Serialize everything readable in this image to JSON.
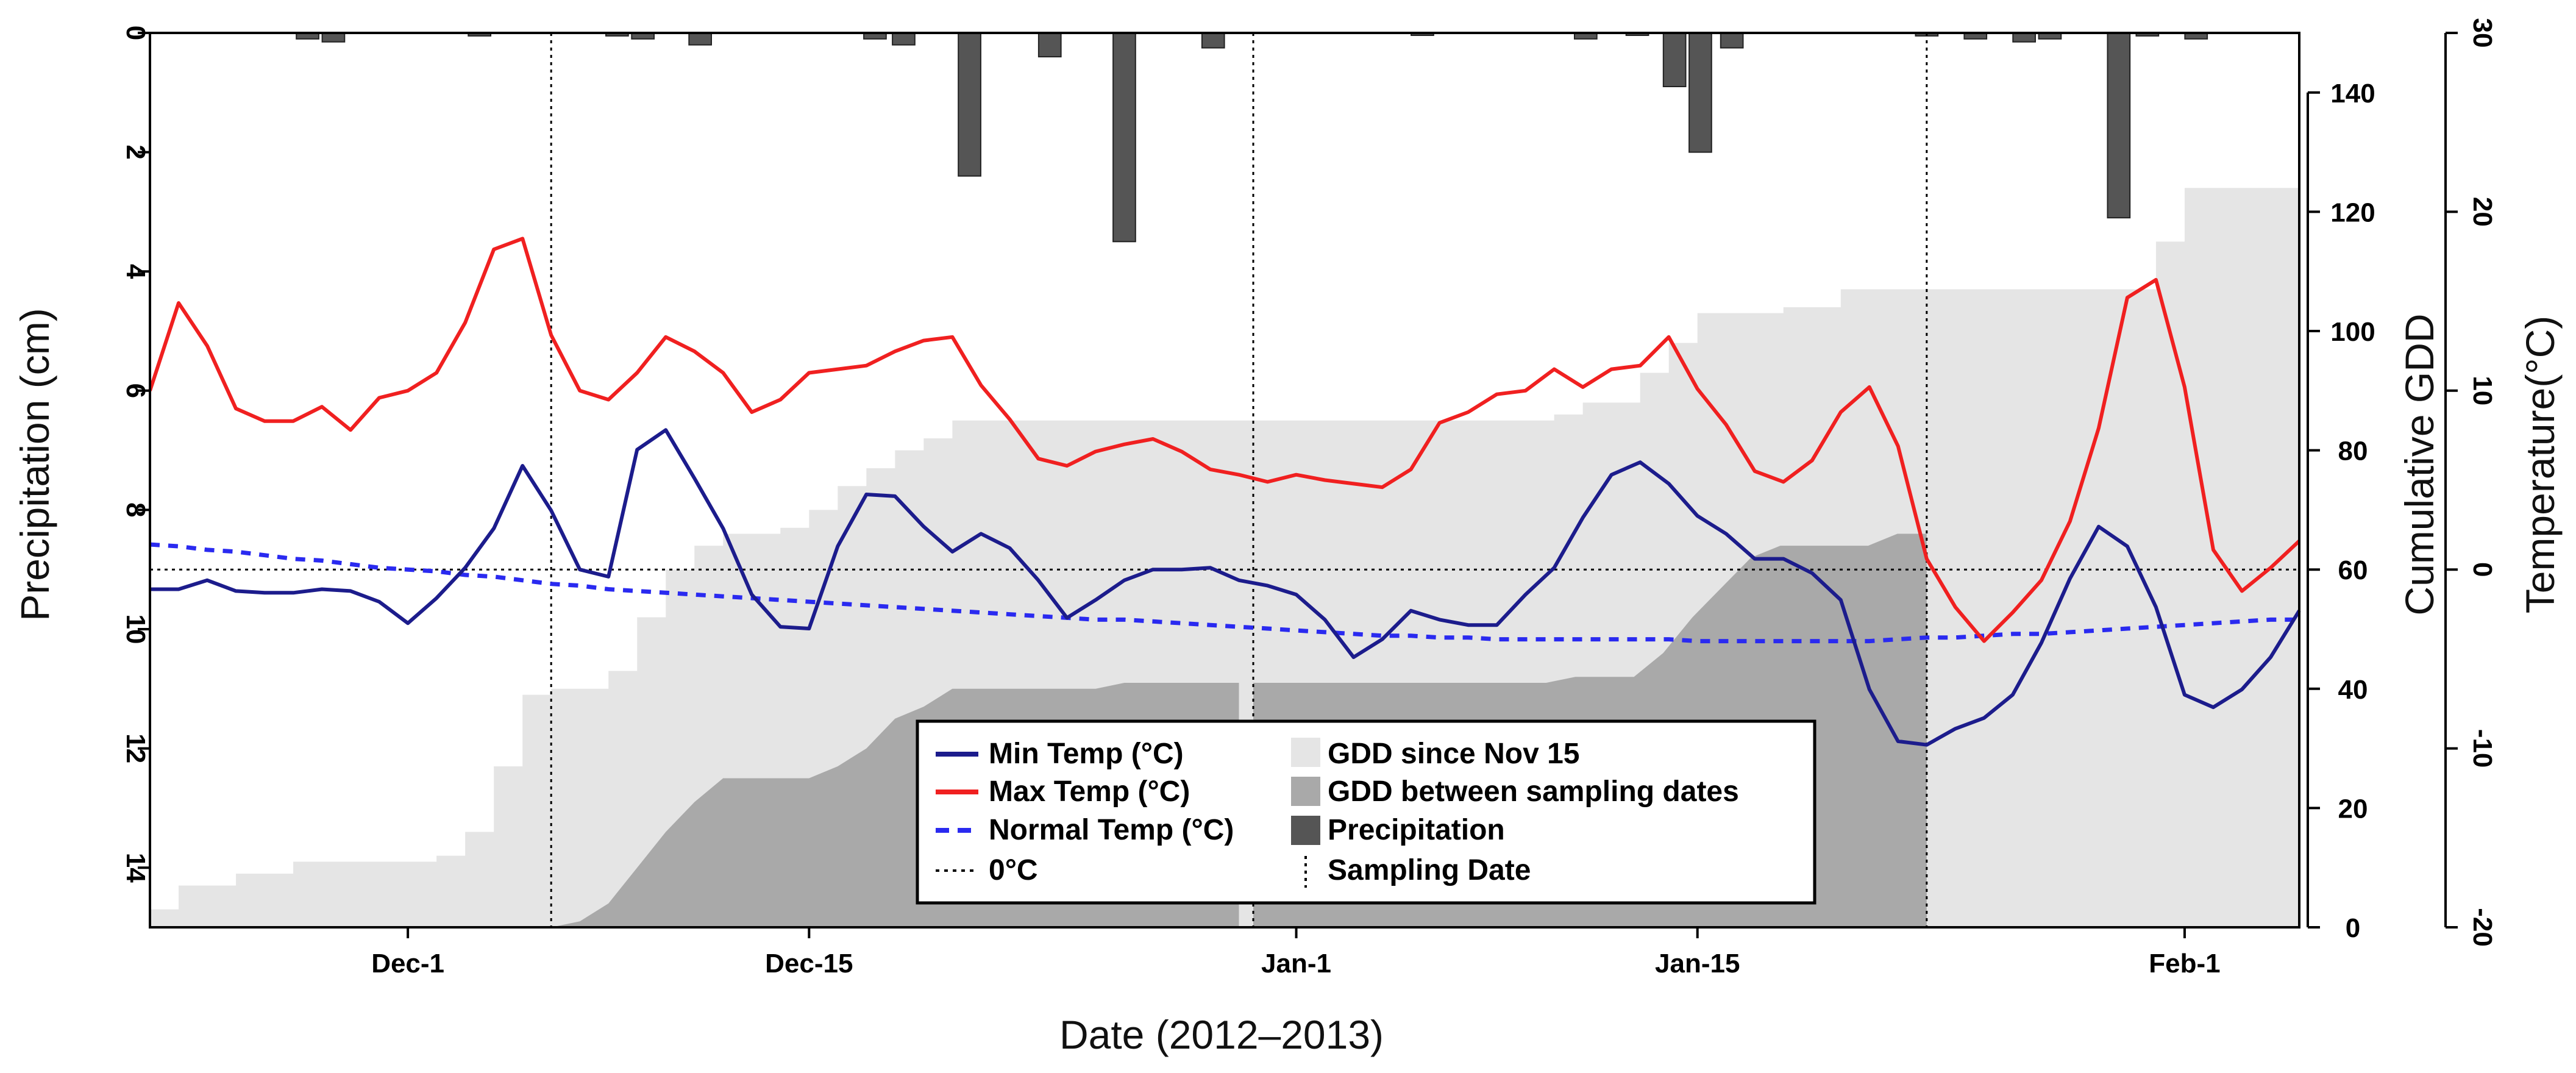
{
  "chart_data": {
    "type": "line",
    "title": "",
    "xlabel": "Date (2012–2013)",
    "ylabel_left": "Precipitation (cm)",
    "ylabel_gdd": "Cumulative GDD",
    "ylabel_right": "Temperature(°C)",
    "day_range": [
      0,
      75
    ],
    "x_ticks": [
      {
        "day": 9,
        "label": "Dec-1"
      },
      {
        "day": 23,
        "label": "Dec-15"
      },
      {
        "day": 40,
        "label": "Jan-1"
      },
      {
        "day": 54,
        "label": "Jan-15"
      },
      {
        "day": 71,
        "label": "Feb-1"
      }
    ],
    "precip_axis": {
      "ylim": [
        0,
        15
      ],
      "inverted": true,
      "ticks": [
        0,
        2,
        4,
        6,
        8,
        10,
        12,
        14
      ]
    },
    "gdd_axis": {
      "ylim": [
        0,
        150
      ],
      "ticks": [
        0,
        20,
        40,
        60,
        80,
        100,
        120,
        140
      ]
    },
    "temp_axis": {
      "ylim": [
        -20,
        30
      ],
      "ticks": [
        -20,
        -10,
        0,
        10,
        20,
        30
      ]
    },
    "zero_line": 0,
    "sampling_days": [
      14,
      38.5,
      62
    ],
    "min_temp": [
      -1.1,
      -1.1,
      -0.6,
      -1.2,
      -1.3,
      -1.3,
      -1.1,
      -1.2,
      -1.8,
      -3.0,
      -1.6,
      0.1,
      2.3,
      5.8,
      3.3,
      0.0,
      -0.4,
      6.7,
      7.8,
      5.1,
      2.3,
      -1.4,
      -3.2,
      -3.3,
      1.3,
      4.2,
      4.1,
      2.4,
      1.0,
      2.0,
      1.2,
      -0.6,
      -2.7,
      -1.7,
      -0.6,
      0.0,
      0.0,
      0.1,
      -0.6,
      -0.9,
      -1.4,
      -2.8,
      -4.9,
      -3.9,
      -2.3,
      -2.8,
      -3.1,
      -3.1,
      -1.4,
      0.1,
      2.9,
      5.3,
      6.0,
      4.8,
      3.0,
      2.0,
      0.6,
      0.6,
      -0.2,
      -1.7,
      -6.7,
      -9.6,
      -9.8,
      -8.9,
      -8.3,
      -7.0,
      -4.1,
      -0.5,
      2.4,
      1.3,
      -2.1,
      -7.0,
      -7.7,
      -6.7,
      -4.9,
      -2.3
    ],
    "max_temp": [
      10.0,
      14.9,
      12.5,
      9.0,
      8.3,
      8.3,
      9.1,
      7.8,
      9.6,
      10.0,
      11.0,
      13.8,
      17.9,
      18.5,
      13.1,
      10.0,
      9.5,
      11.0,
      13.0,
      12.2,
      11.0,
      8.8,
      9.5,
      11.0,
      11.2,
      11.4,
      12.2,
      12.8,
      13.0,
      10.3,
      8.4,
      6.2,
      5.8,
      6.6,
      7.0,
      7.3,
      6.6,
      5.6,
      5.3,
      4.9,
      5.3,
      5.0,
      4.8,
      4.6,
      5.6,
      8.2,
      8.8,
      9.8,
      10.0,
      11.2,
      10.2,
      11.2,
      11.4,
      13.0,
      10.1,
      8.1,
      5.5,
      4.9,
      6.1,
      8.8,
      10.2,
      6.9,
      0.6,
      -2.1,
      -4.0,
      -2.4,
      -0.6,
      2.7,
      7.9,
      15.2,
      16.2,
      10.2,
      1.1,
      -1.2,
      0.1,
      1.6
    ],
    "normal_temp": [
      1.4,
      1.3,
      1.1,
      1.0,
      0.8,
      0.6,
      0.5,
      0.3,
      0.1,
      0.0,
      -0.1,
      -0.3,
      -0.4,
      -0.6,
      -0.8,
      -0.9,
      -1.1,
      -1.2,
      -1.3,
      -1.4,
      -1.5,
      -1.6,
      -1.7,
      -1.8,
      -1.9,
      -2.0,
      -2.1,
      -2.2,
      -2.3,
      -2.4,
      -2.5,
      -2.6,
      -2.7,
      -2.8,
      -2.8,
      -2.9,
      -3.0,
      -3.1,
      -3.2,
      -3.3,
      -3.4,
      -3.5,
      -3.6,
      -3.7,
      -3.7,
      -3.8,
      -3.8,
      -3.9,
      -3.9,
      -3.9,
      -3.9,
      -3.9,
      -3.9,
      -3.9,
      -4.0,
      -4.0,
      -4.0,
      -4.0,
      -4.0,
      -4.0,
      -4.0,
      -3.9,
      -3.8,
      -3.8,
      -3.7,
      -3.6,
      -3.6,
      -3.5,
      -3.4,
      -3.3,
      -3.2,
      -3.1,
      -3.0,
      -2.9,
      -2.8,
      -2.8
    ],
    "gdd_since_nov15": [
      3,
      7,
      7,
      9,
      9,
      11,
      11,
      11,
      11,
      11,
      12,
      16,
      27,
      39,
      40,
      40,
      43,
      52,
      60,
      64,
      66,
      66,
      67,
      70,
      74,
      77,
      80,
      82,
      85,
      85,
      85,
      85,
      85,
      85,
      85,
      85,
      85,
      85,
      85,
      85,
      85,
      85,
      85,
      85,
      85,
      85,
      85,
      85,
      85,
      86,
      88,
      88,
      93,
      98,
      103,
      103,
      103,
      104,
      104,
      107,
      107,
      107,
      107,
      107,
      107,
      107,
      107,
      107,
      107,
      107,
      115,
      124,
      124,
      124,
      124,
      124
    ],
    "gdd_between_sampling": {
      "period_1": {
        "start_day": 14,
        "end_day": 38,
        "values": [
          0,
          1,
          4,
          10,
          16,
          21,
          25,
          25,
          25,
          25,
          27,
          30,
          35,
          37,
          40,
          40,
          40,
          40,
          40,
          40,
          41,
          41,
          41,
          41,
          41
        ]
      },
      "period_2": {
        "start_day": 38.5,
        "end_day": 62,
        "values": [
          41,
          41,
          41,
          41,
          41,
          41,
          41,
          41,
          41,
          41,
          41,
          42,
          42,
          42,
          46,
          52,
          57,
          62,
          64,
          64,
          64,
          64,
          66,
          66
        ]
      }
    },
    "precipitation": [
      {
        "day": 5.5,
        "value": 0.1
      },
      {
        "day": 6.4,
        "value": 0.15
      },
      {
        "day": 11.5,
        "value": 0.05
      },
      {
        "day": 16.3,
        "value": 0.05
      },
      {
        "day": 17.2,
        "value": 0.1
      },
      {
        "day": 19.2,
        "value": 0.2
      },
      {
        "day": 25.3,
        "value": 0.1
      },
      {
        "day": 26.3,
        "value": 0.2
      },
      {
        "day": 28.6,
        "value": 2.4
      },
      {
        "day": 31.4,
        "value": 0.4
      },
      {
        "day": 34.0,
        "value": 3.5
      },
      {
        "day": 37.1,
        "value": 0.25
      },
      {
        "day": 44.4,
        "value": 0.03
      },
      {
        "day": 50.1,
        "value": 0.1
      },
      {
        "day": 51.9,
        "value": 0.03
      },
      {
        "day": 53.2,
        "value": 0.9
      },
      {
        "day": 54.1,
        "value": 2.0
      },
      {
        "day": 55.2,
        "value": 0.25
      },
      {
        "day": 62.0,
        "value": 0.05
      },
      {
        "day": 63.7,
        "value": 0.1
      },
      {
        "day": 65.4,
        "value": 0.15
      },
      {
        "day": 66.3,
        "value": 0.1
      },
      {
        "day": 68.7,
        "value": 3.1
      },
      {
        "day": 69.7,
        "value": 0.05
      },
      {
        "day": 71.4,
        "value": 0.1
      }
    ],
    "colors": {
      "min_temp": "#1c1c8c",
      "max_temp": "#f02020",
      "normal_temp": "#2a2af0",
      "gdd_since": "#e5e5e5",
      "gdd_between": "#a9a9a9",
      "precip": "#555555"
    },
    "legend": {
      "min_temp": "Min Temp (°C)",
      "max_temp": "Max Temp (°C)",
      "normal_temp": "Normal Temp (°C)",
      "zero": "0°C",
      "gdd_since": "GDD since Nov 15",
      "gdd_between": "GDD between sampling dates",
      "precipitation": "Precipitation",
      "sampling": "Sampling Date"
    }
  }
}
